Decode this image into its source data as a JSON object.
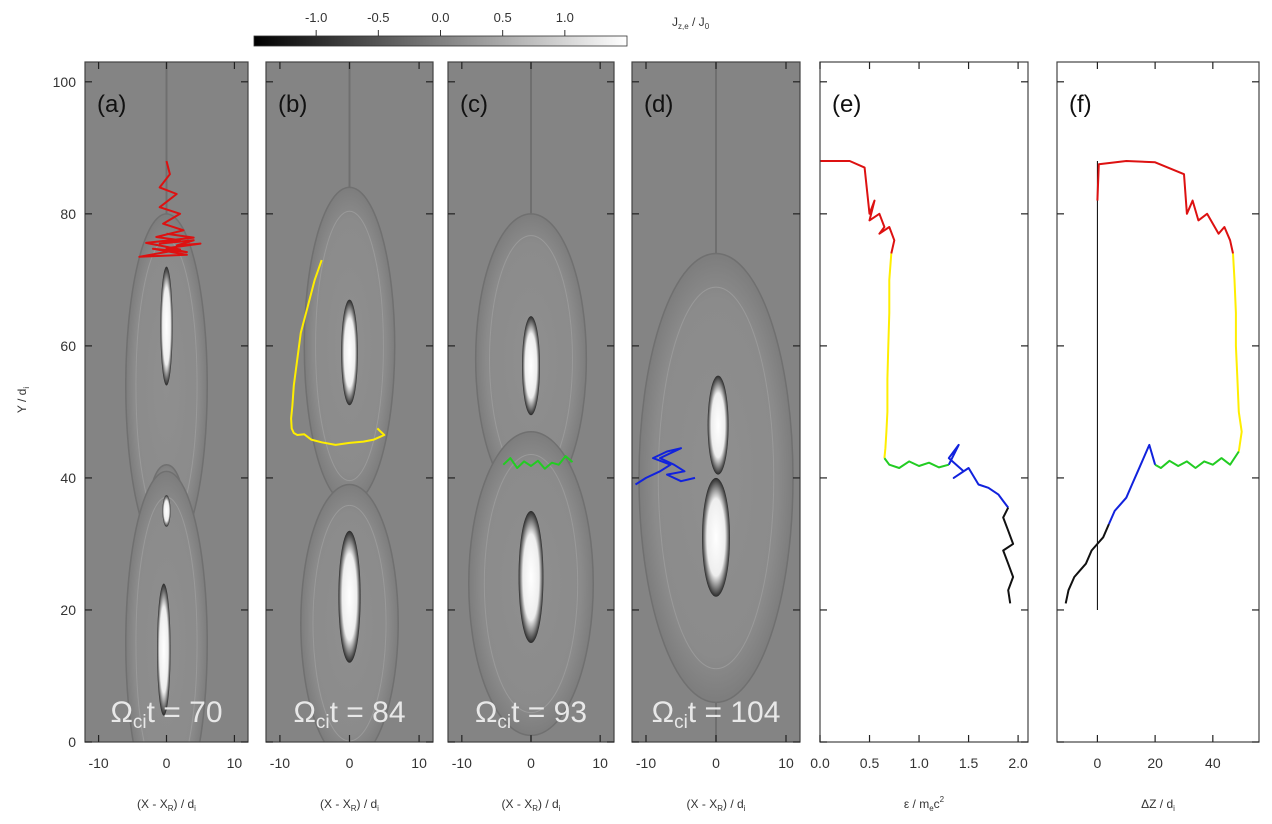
{
  "colorbar": {
    "label": "J_{z,e} / J_0",
    "label_main": "J",
    "label_sub": "z,e",
    "label_rest": " / J",
    "label_sub2": "0",
    "ticks": [
      "-1.0",
      "-0.5",
      "0.0",
      "0.5",
      "1.0"
    ],
    "tick_values": [
      -1.0,
      -0.5,
      0.0,
      0.5,
      1.0
    ],
    "range": [
      -1.5,
      1.5
    ]
  },
  "y_axis": {
    "label": "Y / d_i",
    "label_main": "Y / d",
    "label_sub": "i",
    "ticks": [
      "0",
      "20",
      "40",
      "60",
      "80",
      "100"
    ],
    "tick_values": [
      0,
      20,
      40,
      60,
      80,
      100
    ],
    "range": [
      0,
      103
    ]
  },
  "chart_data": [
    {
      "type": "heatmap",
      "panel": "(a)",
      "time_label_main": "Ω",
      "time_label_sub": "ci",
      "time_label_rest": "t = 70",
      "xlabel_main": "(X - X",
      "xlabel_sub": "R",
      "xlabel_rest": ") / d",
      "xlabel_sub2": "i",
      "xticks": [
        "-10",
        "0",
        "10"
      ],
      "xtick_values": [
        -10,
        0,
        10
      ],
      "xlim": [
        -12,
        12
      ],
      "islands": [
        {
          "cx": 0,
          "cy": 54,
          "rx": 6,
          "ry": 26
        },
        {
          "cx": 0,
          "cy": 35,
          "rx": 2.6,
          "ry": 7
        },
        {
          "cx": 0,
          "cy": 15,
          "rx": 6,
          "ry": 26
        }
      ],
      "cores": [
        {
          "cx": 0,
          "cy": 63,
          "rx": 0.9,
          "ry": 9
        },
        {
          "cx": 0,
          "cy": 35,
          "rx": 0.6,
          "ry": 2.4
        },
        {
          "cx": -0.4,
          "cy": 14,
          "rx": 1.0,
          "ry": 10
        }
      ],
      "trajectory": {
        "color": "#dd1111",
        "x": [
          0,
          0.5,
          -1,
          1.5,
          -1,
          2,
          -0.5,
          2.5,
          -1.5,
          2,
          -1,
          4,
          1.5,
          5,
          0,
          3,
          -2,
          3,
          -4,
          2,
          -3,
          4,
          0
        ],
        "y": [
          88,
          86,
          84,
          83,
          81,
          80,
          78.5,
          77.5,
          76.5,
          76,
          75.5,
          76,
          75.2,
          75.5,
          74.8,
          74.2,
          74.7,
          73.8,
          73.5,
          74.6,
          75.6,
          76.4,
          77
        ]
      }
    },
    {
      "type": "heatmap",
      "panel": "(b)",
      "time_label_main": "Ω",
      "time_label_sub": "ci",
      "time_label_rest": "t = 84",
      "xlabel_main": "(X - X",
      "xlabel_sub": "R",
      "xlabel_rest": ") / d",
      "xlabel_sub2": "i",
      "xticks": [
        "-10",
        "0",
        "10"
      ],
      "xtick_values": [
        -10,
        0,
        10
      ],
      "xlim": [
        -12,
        12
      ],
      "islands": [
        {
          "cx": 0,
          "cy": 60,
          "rx": 6.5,
          "ry": 24
        },
        {
          "cx": 0,
          "cy": 18,
          "rx": 7,
          "ry": 21
        }
      ],
      "cores": [
        {
          "cx": 0,
          "cy": 59,
          "rx": 1.2,
          "ry": 8
        },
        {
          "cx": 0,
          "cy": 22,
          "rx": 1.6,
          "ry": 10
        }
      ],
      "trajectory": {
        "color": "#ffee00",
        "x": [
          -4,
          -5,
          -6,
          -7,
          -7.5,
          -8,
          -8.2,
          -8.4,
          -8.3,
          -8,
          -7.5,
          -6.5,
          -5.5,
          -4,
          -2,
          0,
          2,
          3.5,
          5,
          4
        ],
        "y": [
          73,
          70,
          66,
          62,
          58,
          54,
          51,
          49,
          47.5,
          46.8,
          46.5,
          46.6,
          45.8,
          45.4,
          45,
          45.3,
          45.5,
          45.8,
          46.5,
          47.5
        ]
      }
    },
    {
      "type": "heatmap",
      "panel": "(c)",
      "time_label_main": "Ω",
      "time_label_sub": "ci",
      "time_label_rest": "t = 93",
      "xlabel_main": "(X - X",
      "xlabel_sub": "R",
      "xlabel_rest": ") / d",
      "xlabel_sub2": "i",
      "xticks": [
        "-10",
        "0",
        "10"
      ],
      "xtick_values": [
        -10,
        0,
        10
      ],
      "xlim": [
        -12,
        12
      ],
      "islands": [
        {
          "cx": 0,
          "cy": 58,
          "rx": 8,
          "ry": 22
        },
        {
          "cx": 0,
          "cy": 24,
          "rx": 9,
          "ry": 23
        }
      ],
      "cores": [
        {
          "cx": 0,
          "cy": 57,
          "rx": 1.3,
          "ry": 7.5
        },
        {
          "cx": 0,
          "cy": 25,
          "rx": 1.8,
          "ry": 10
        }
      ],
      "trajectory": {
        "color": "#22cc22",
        "x": [
          -4,
          -3,
          -2,
          -1,
          0,
          1,
          2,
          3,
          4,
          5,
          6
        ],
        "y": [
          42,
          43,
          41.5,
          42.5,
          41.8,
          42.6,
          41.4,
          42.3,
          42,
          43.3,
          42.4
        ]
      }
    },
    {
      "type": "heatmap",
      "panel": "(d)",
      "time_label_main": "Ω",
      "time_label_sub": "ci",
      "time_label_rest": "t = 104",
      "xlabel_main": "(X - X",
      "xlabel_sub": "R",
      "xlabel_rest": ") / d",
      "xlabel_sub2": "i",
      "xticks": [
        "-10",
        "0",
        "10"
      ],
      "xtick_values": [
        -10,
        0,
        10
      ],
      "xlim": [
        -12,
        12
      ],
      "islands": [
        {
          "cx": 0,
          "cy": 40,
          "rx": 11,
          "ry": 34
        }
      ],
      "cores": [
        {
          "cx": 0.3,
          "cy": 48,
          "rx": 1.5,
          "ry": 7.5
        },
        {
          "cx": 0,
          "cy": 31,
          "rx": 2,
          "ry": 9
        }
      ],
      "trajectory": {
        "color": "#1122dd",
        "x": [
          -11.5,
          -10,
          -8,
          -6.5,
          -9,
          -7,
          -5,
          -8,
          -6,
          -4.5,
          -7,
          -5,
          -3
        ],
        "y": [
          39,
          40,
          41,
          42,
          43,
          44,
          44.5,
          43,
          42,
          41,
          40.5,
          39.5,
          40
        ]
      }
    },
    {
      "type": "line",
      "panel": "(e)",
      "xlabel_main": "ε / m",
      "xlabel_sub": "e",
      "xlabel_rest": "c",
      "xlabel_sup": "2",
      "xticks": [
        "0.0",
        "0.5",
        "1.0",
        "1.5",
        "2.0"
      ],
      "xtick_values": [
        0,
        0.5,
        1.0,
        1.5,
        2.0
      ],
      "xlim": [
        0,
        2.1
      ],
      "series": [
        {
          "color": "#dd1111",
          "x": [
            0,
            0.3,
            0.45,
            0.5,
            0.55,
            0.5,
            0.6,
            0.65,
            0.6,
            0.7,
            0.75,
            0.72
          ],
          "y": [
            88,
            88,
            87,
            80,
            82,
            79,
            80,
            78,
            77,
            78,
            76,
            74
          ]
        },
        {
          "color": "#ffee00",
          "x": [
            0.72,
            0.7,
            0.7,
            0.69,
            0.68,
            0.68,
            0.67,
            0.66,
            0.65
          ],
          "y": [
            74,
            70,
            65,
            60,
            55,
            50,
            47,
            44.5,
            43
          ]
        },
        {
          "color": "#22cc22",
          "x": [
            0.65,
            0.7,
            0.8,
            0.9,
            1.0,
            1.1,
            1.2,
            1.3
          ],
          "y": [
            43,
            42,
            41.5,
            42.5,
            41.8,
            42.3,
            41.6,
            42
          ]
        },
        {
          "color": "#1122dd",
          "x": [
            1.3,
            1.4,
            1.3,
            1.45,
            1.35,
            1.5,
            1.6,
            1.7,
            1.8,
            1.85,
            1.9
          ],
          "y": [
            42,
            45,
            43,
            41,
            40,
            41.5,
            39,
            38.5,
            37.5,
            36.5,
            35.5
          ]
        },
        {
          "color": "#111111",
          "x": [
            1.9,
            1.85,
            1.9,
            1.95,
            1.85,
            1.9,
            1.95,
            1.9,
            1.92
          ],
          "y": [
            35.5,
            34,
            32,
            30,
            29,
            27,
            25,
            23,
            21
          ]
        }
      ]
    },
    {
      "type": "line",
      "panel": "(f)",
      "xlabel_main": "ΔZ / d",
      "xlabel_sub": "i",
      "xticks": [
        "0",
        "20",
        "40"
      ],
      "xtick_values": [
        0,
        20,
        40
      ],
      "xlim": [
        -14,
        56
      ],
      "vline_x": 0,
      "series": [
        {
          "color": "#dd1111",
          "x": [
            0,
            0.5,
            10,
            20,
            30,
            31,
            33,
            35,
            38,
            42,
            44,
            46,
            47
          ],
          "y": [
            82,
            87.5,
            88,
            87.8,
            86,
            80,
            82,
            79,
            80,
            77,
            78,
            76,
            74
          ]
        },
        {
          "color": "#ffee00",
          "x": [
            47,
            47.5,
            48,
            48,
            48.5,
            49,
            50,
            49
          ],
          "y": [
            74,
            70,
            65,
            60,
            55,
            50,
            47,
            44
          ]
        },
        {
          "color": "#22cc22",
          "x": [
            49,
            46,
            43,
            40,
            37,
            34,
            31,
            28,
            25,
            22,
            20
          ],
          "y": [
            44,
            42,
            43,
            42,
            42.5,
            41.5,
            42.5,
            41.8,
            42.6,
            41.5,
            42
          ]
        },
        {
          "color": "#1122dd",
          "x": [
            20,
            18,
            14,
            12,
            10,
            8,
            6,
            4
          ],
          "y": [
            42,
            45,
            41,
            39,
            37,
            36,
            35,
            33
          ]
        },
        {
          "color": "#111111",
          "x": [
            4,
            2,
            0,
            -2,
            -4,
            -6,
            -8,
            -10,
            -11
          ],
          "y": [
            33,
            31,
            30,
            29,
            27,
            26,
            25,
            23,
            21
          ]
        }
      ]
    }
  ]
}
